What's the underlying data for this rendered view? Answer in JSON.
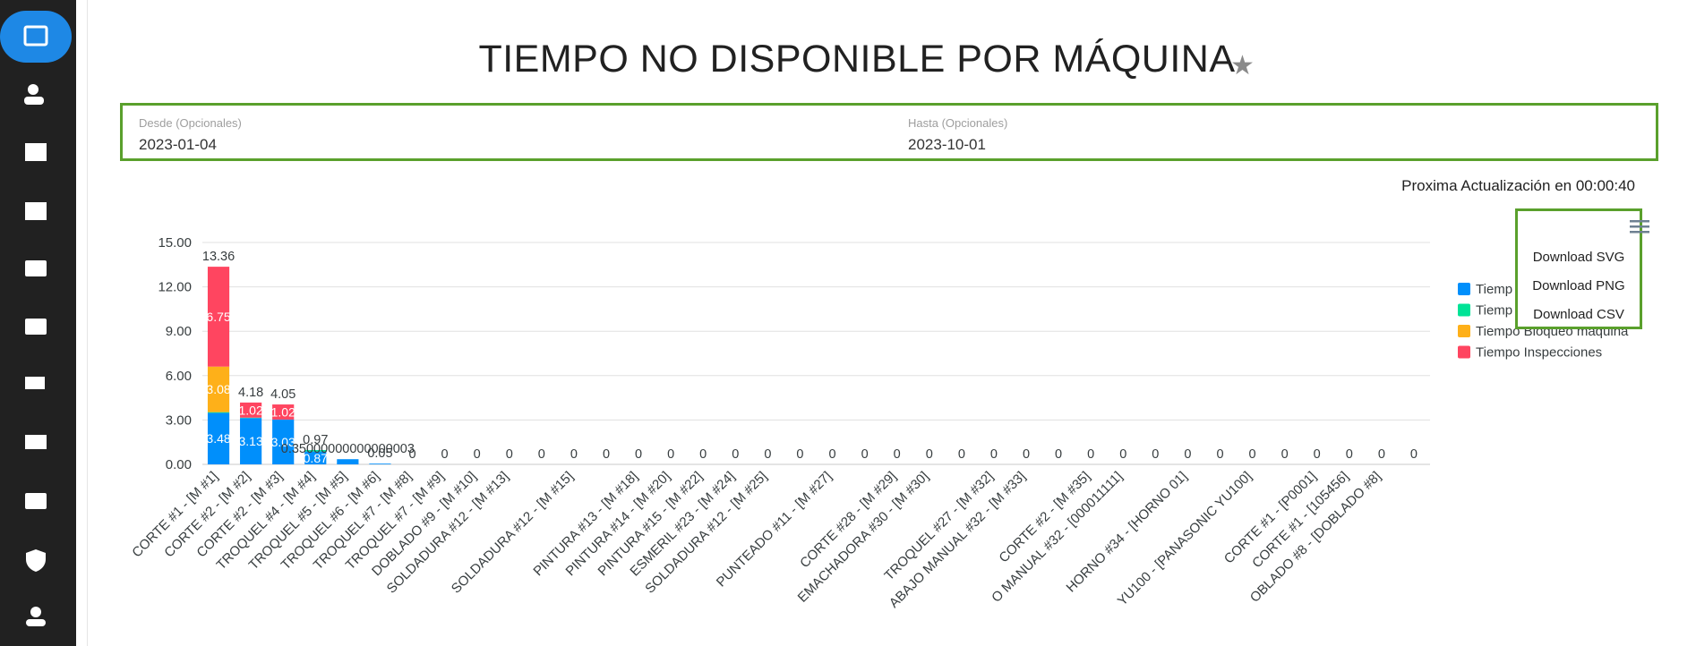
{
  "header": {
    "title": "TIEMPO NO DISPONIBLE POR MÁQUINA"
  },
  "filters": {
    "from": {
      "label": "Desde (Opcionales)",
      "value": "2023-01-04"
    },
    "to": {
      "label": "Hasta (Opcionales)",
      "value": "2023-10-01"
    }
  },
  "status": "Proxima Actualización en 00:00:40",
  "menu": {
    "items": [
      "Download SVG",
      "Download PNG",
      "Download CSV"
    ]
  },
  "chart_data": {
    "type": "bar",
    "stacked": true,
    "categories": [
      "CORTE #1 - [M #1]",
      "CORTE #2 - [M #2]",
      "CORTE #2 - [M #3]",
      "TROQUEL #4 - [M #4]",
      "TROQUEL #5 - [M #5]",
      "TROQUEL #6 - [M #6]",
      "TROQUEL #7 - [M #8]",
      "TROQUEL #7 - [M #9]",
      "DOBLADO #9 - [M #10]",
      "SOLDADURA #12 - [M #13]",
      null,
      "SOLDADURA #12 - [M #15]",
      null,
      "PINTURA #13 - [M #18]",
      "PINTURA #14 - [M #20]",
      "PINTURA #15 - [M #22]",
      "ESMERIL #23 - [M #24]",
      "SOLDADURA #12 - [M #25]",
      null,
      "PUNTEADO #11 - [M #27]",
      null,
      "CORTE #28 - [M #29]",
      "EMACHADORA #30 - [M #30]",
      null,
      "TROQUEL #27 - [M #32]",
      "ABAJO MANUAL #32 - [M #33]",
      null,
      "CORTE #2 - [M #35]",
      "O MANUAL #32 - [000011111]",
      null,
      "HORNO #34 - [HORNO 01]",
      null,
      "YU100 - [PANASONIC YU100]",
      null,
      "CORTE #1 - [P0001]",
      "CORTE #1 - [105456]",
      "OBLADO #8 - [DOBLADO #8]",
      null
    ],
    "series": [
      {
        "name": "Tiemp",
        "color": "#008ffb",
        "values": [
          3.48,
          3.13,
          3.03,
          0.87,
          0.35,
          0.05,
          0,
          0,
          0,
          0,
          0,
          0,
          0,
          0,
          0,
          0,
          0,
          0,
          0,
          0,
          0,
          0,
          0,
          0,
          0,
          0,
          0,
          0,
          0,
          0,
          0,
          0,
          0,
          0,
          0,
          0,
          0,
          0
        ]
      },
      {
        "name": "Tiemp",
        "color": "#00e396",
        "values": [
          0.05,
          0.03,
          0,
          0.1,
          0,
          0,
          0,
          0,
          0,
          0,
          0,
          0,
          0,
          0,
          0,
          0,
          0,
          0,
          0,
          0,
          0,
          0,
          0,
          0,
          0,
          0,
          0,
          0,
          0,
          0,
          0,
          0,
          0,
          0,
          0,
          0,
          0,
          0
        ]
      },
      {
        "name": "Tiempo Bloqueo máquina",
        "color": "#feb019",
        "values": [
          3.08,
          0,
          0,
          0,
          0,
          0,
          0,
          0,
          0,
          0,
          0,
          0,
          0,
          0,
          0,
          0,
          0,
          0,
          0,
          0,
          0,
          0,
          0,
          0,
          0,
          0,
          0,
          0,
          0,
          0,
          0,
          0,
          0,
          0,
          0,
          0,
          0,
          0
        ]
      },
      {
        "name": "Tiempo Inspecciones",
        "color": "#ff4560",
        "values": [
          6.75,
          1.02,
          1.02,
          0,
          0,
          0,
          0,
          0,
          0,
          0,
          0,
          0,
          0,
          0,
          0,
          0,
          0,
          0,
          0,
          0,
          0,
          0,
          0,
          0,
          0,
          0,
          0,
          0,
          0,
          0,
          0,
          0,
          0,
          0,
          0,
          0,
          0,
          0
        ]
      }
    ],
    "totals": {
      "values": [
        13.36,
        4.18,
        4.05,
        0.97,
        0.35,
        0.05,
        0,
        0,
        0,
        0,
        0,
        0,
        0,
        0,
        0,
        0,
        0,
        0,
        0,
        0,
        0,
        0,
        0,
        0,
        0,
        0,
        0,
        0,
        0,
        0,
        0,
        0,
        0,
        0,
        0,
        0,
        0,
        0
      ],
      "value_labels": [
        "13.36",
        "4.18",
        "4.05",
        "0.97",
        "0.35000000000000003",
        "0.05",
        "0",
        "0",
        "0",
        "0",
        "0",
        "0",
        "0",
        "0",
        "0",
        "0",
        "0",
        "0",
        "0",
        "0",
        "0",
        "0",
        "0",
        "0",
        "0",
        "0",
        "0",
        "0",
        "0",
        "0",
        "0",
        "0",
        "0",
        "0",
        "0",
        "0",
        "0",
        "0"
      ]
    },
    "ylim": [
      0,
      15
    ],
    "yticks": [
      {
        "value": 0,
        "label": "0.00"
      },
      {
        "value": 3,
        "label": "3.00"
      },
      {
        "value": 6,
        "label": "6.00"
      },
      {
        "value": 9,
        "label": "9.00"
      },
      {
        "value": 12,
        "label": "12.00"
      },
      {
        "value": 15,
        "label": "15.00"
      }
    ],
    "grid": true
  }
}
